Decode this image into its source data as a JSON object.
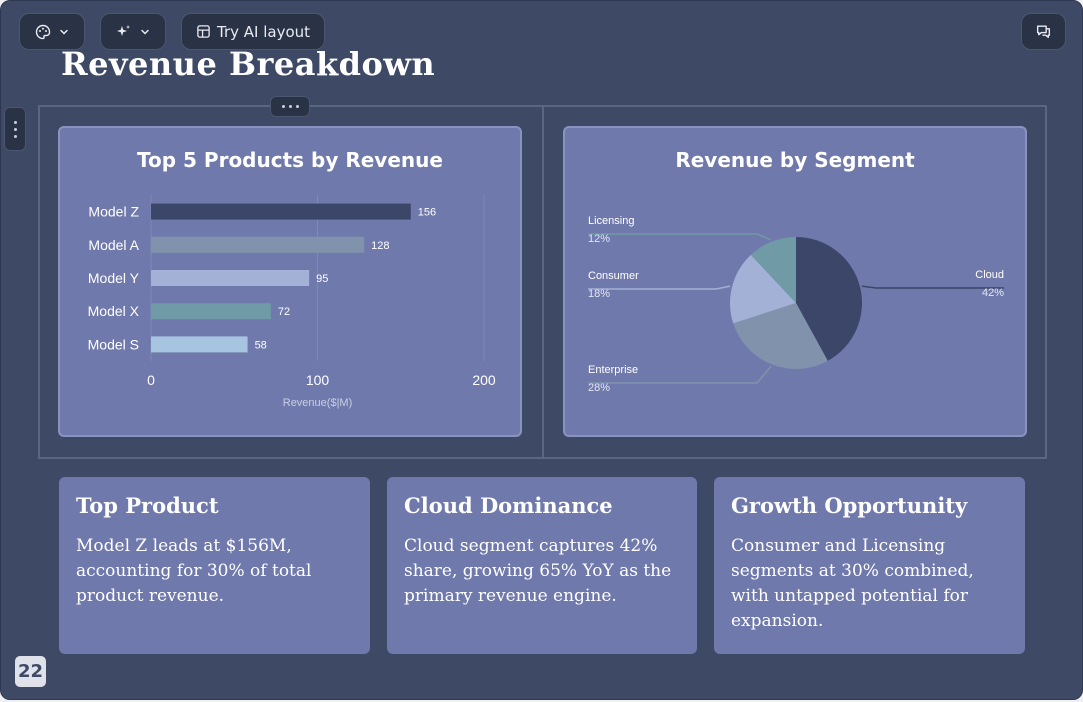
{
  "toolbar": {
    "theme_icon": "palette-icon",
    "ai_icon": "sparkles-icon",
    "layout_icon": "layout-icon",
    "try_ai_layout_label": "Try AI layout",
    "comments_icon": "comment-icon"
  },
  "slide": {
    "title": "Revenue Breakdown",
    "page_number": "22"
  },
  "bar_chart_title": "Top 5 Products by Revenue",
  "pie_chart_title": "Revenue by Segment",
  "chart_data": [
    {
      "type": "bar",
      "orientation": "horizontal",
      "title": "Top 5 Products by Revenue",
      "categories": [
        "Model Z",
        "Model A",
        "Model Y",
        "Model X",
        "Model S"
      ],
      "values": [
        156,
        128,
        95,
        72,
        58
      ],
      "colors": [
        "#3b4668",
        "#8092ac",
        "#a3b1d6",
        "#6f9aa6",
        "#a7c4e0"
      ],
      "xlabel": "Revenue($|M)",
      "ylabel": "",
      "xlim": [
        0,
        200
      ],
      "xticks": [
        0,
        100,
        200
      ],
      "grid": true,
      "data_labels": true
    },
    {
      "type": "pie",
      "title": "Revenue by Segment",
      "categories": [
        "Cloud",
        "Enterprise",
        "Consumer",
        "Licensing"
      ],
      "values": [
        42,
        28,
        18,
        12
      ],
      "labels": [
        "42%",
        "28%",
        "18%",
        "12%"
      ],
      "colors": [
        "#3b4668",
        "#8092ac",
        "#a3b1d6",
        "#6f9aa6"
      ],
      "leader_lines": true
    }
  ],
  "insights": [
    {
      "title": "Top Product",
      "body": "Model Z leads at $156M, accounting for 30% of total product revenue."
    },
    {
      "title": "Cloud Dominance",
      "body": "Cloud segment captures 42% share, growing 65% YoY as the primary revenue engine."
    },
    {
      "title": "Growth Opportunity",
      "body": "Consumer and Licensing segments at 30% combined, with untapped potential for expansion."
    }
  ]
}
